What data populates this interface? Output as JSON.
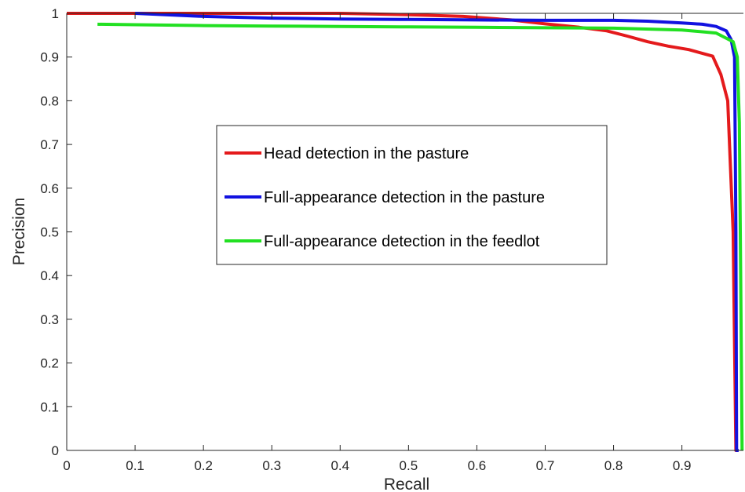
{
  "chart_data": {
    "type": "line",
    "title": "",
    "xlabel": "Recall",
    "ylabel": "Precision",
    "xlim": [
      0,
      0.99
    ],
    "ylim": [
      0,
      1
    ],
    "grid": false,
    "legend_position": "center-left",
    "x_ticks": [
      "0",
      "0.1",
      "0.2",
      "0.3",
      "0.4",
      "0.5",
      "0.6",
      "0.7",
      "0.8",
      "0.9"
    ],
    "y_ticks": [
      "0",
      "0.1",
      "0.2",
      "0.3",
      "0.4",
      "0.5",
      "0.6",
      "0.7",
      "0.8",
      "0.9",
      "1"
    ],
    "series": [
      {
        "name": "Head detection in the pasture",
        "color": "#e41a1c",
        "x": [
          0.0,
          0.1,
          0.2,
          0.3,
          0.4,
          0.5,
          0.58,
          0.65,
          0.7,
          0.75,
          0.79,
          0.82,
          0.85,
          0.88,
          0.91,
          0.945,
          0.957,
          0.967,
          0.975,
          0.979,
          0.982
        ],
        "y": [
          1.0,
          1.0,
          1.0,
          1.0,
          1.0,
          0.997,
          0.993,
          0.985,
          0.976,
          0.968,
          0.96,
          0.948,
          0.935,
          0.925,
          0.917,
          0.902,
          0.86,
          0.8,
          0.5,
          0.0,
          0.0
        ]
      },
      {
        "name": "Full-appearance detection in the pasture",
        "color": "#1212e0",
        "x": [
          0.1,
          0.2,
          0.3,
          0.4,
          0.5,
          0.6,
          0.7,
          0.8,
          0.85,
          0.9,
          0.93,
          0.95,
          0.965,
          0.972,
          0.977,
          0.979,
          0.98,
          0.983
        ],
        "y": [
          1.0,
          0.993,
          0.989,
          0.987,
          0.986,
          0.985,
          0.984,
          0.984,
          0.982,
          0.978,
          0.975,
          0.97,
          0.96,
          0.94,
          0.9,
          0.5,
          0.0,
          0.0
        ]
      },
      {
        "name": "Full-appearance detection in the feedlot",
        "color": "#22e022",
        "x": [
          0.045,
          0.1,
          0.2,
          0.3,
          0.4,
          0.5,
          0.6,
          0.7,
          0.8,
          0.9,
          0.95,
          0.975,
          0.981,
          0.984,
          0.986,
          0.988
        ],
        "y": [
          0.975,
          0.974,
          0.972,
          0.971,
          0.97,
          0.969,
          0.968,
          0.967,
          0.966,
          0.962,
          0.955,
          0.935,
          0.9,
          0.75,
          0.4,
          0.0
        ]
      }
    ]
  }
}
